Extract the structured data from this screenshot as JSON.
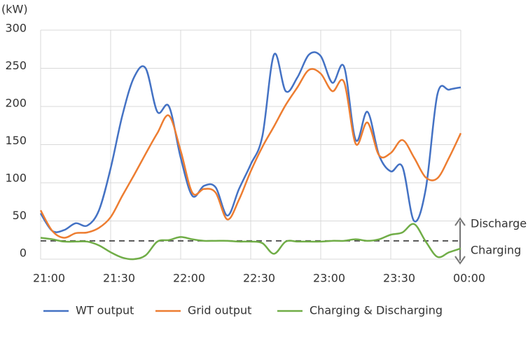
{
  "chart_data": {
    "type": "line",
    "y_unit_label": "(kW)",
    "x": [
      "21:00",
      "21:05",
      "21:10",
      "21:15",
      "21:20",
      "21:25",
      "21:30",
      "21:35",
      "21:40",
      "21:45",
      "21:50",
      "21:55",
      "22:00",
      "22:05",
      "22:10",
      "22:15",
      "22:20",
      "22:25",
      "22:30",
      "22:35",
      "22:40",
      "22:45",
      "22:50",
      "22:55",
      "23:00",
      "23:05",
      "23:10",
      "23:15",
      "23:20",
      "23:25",
      "23:30",
      "23:35",
      "23:40",
      "23:45",
      "23:50",
      "23:55",
      "00:00"
    ],
    "xlim": [
      "21:00",
      "00:00"
    ],
    "xticks": [
      "21:00",
      "21:30",
      "22:00",
      "22:30",
      "23:00",
      "23:30",
      "00:00"
    ],
    "ylim": [
      0,
      300
    ],
    "yticks": [
      0,
      50,
      100,
      150,
      200,
      250,
      300
    ],
    "grid": true,
    "reference_line": {
      "value": 24,
      "color": "#555555",
      "style": "dashed"
    },
    "series": [
      {
        "name": "WT output",
        "color": "#4472c4",
        "values": [
          60,
          37,
          38,
          47,
          44,
          64,
          119,
          188,
          238,
          250,
          193,
          200,
          133,
          83,
          96,
          94,
          57,
          92,
          124,
          161,
          268,
          220,
          238,
          268,
          266,
          231,
          252,
          156,
          193,
          136,
          115,
          121,
          50,
          92,
          216,
          222,
          225
        ]
      },
      {
        "name": "Grid output",
        "color": "#ed7d31",
        "values": [
          64,
          37,
          28,
          34,
          35,
          41,
          55,
          83,
          110,
          138,
          165,
          188,
          142,
          87,
          92,
          87,
          52,
          78,
          115,
          147,
          174,
          202,
          225,
          248,
          243,
          220,
          232,
          151,
          179,
          136,
          139,
          156,
          133,
          107,
          106,
          133,
          165
        ]
      },
      {
        "name": "Charging & Discharging",
        "color": "#70ad47",
        "values": [
          28,
          26,
          23,
          23,
          23,
          18,
          9,
          2,
          0,
          5,
          23,
          25,
          29,
          26,
          24,
          24,
          24,
          23,
          23,
          21,
          7,
          23,
          23,
          23,
          23,
          24,
          24,
          26,
          24,
          26,
          32,
          35,
          46,
          23,
          3,
          9,
          14
        ]
      }
    ],
    "annotations": [
      "Discharge",
      "Charging"
    ]
  }
}
